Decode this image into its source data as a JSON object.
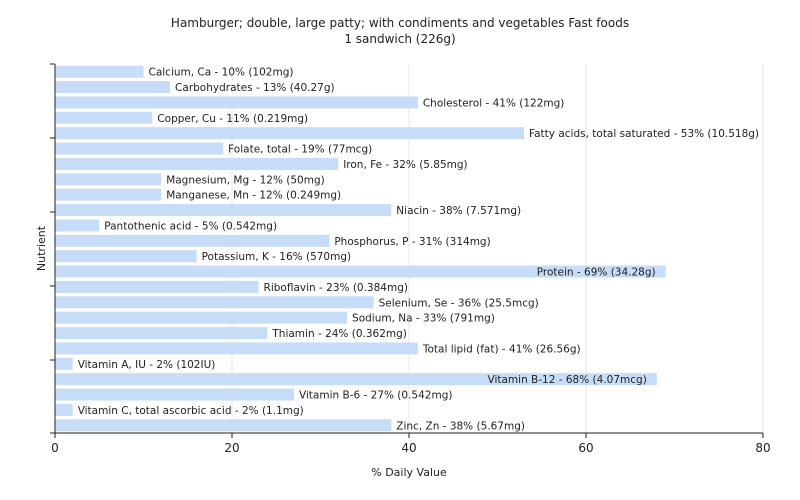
{
  "chart_data": {
    "type": "bar",
    "orientation": "horizontal",
    "title": "Hamburger; double, large patty; with condiments and vegetables Fast foods",
    "subtitle": "1 sandwich (226g)",
    "xlabel": "% Daily Value",
    "ylabel": "Nutrient",
    "xlim": [
      0,
      80
    ],
    "xticks": [
      0,
      20,
      40,
      60,
      80
    ],
    "grid": "vertical",
    "bar_color": "#c6dcf7",
    "categories": [
      "Calcium, Ca",
      "Carbohydrates",
      "Cholesterol",
      "Copper, Cu",
      "Fatty acids, total saturated",
      "Folate, total",
      "Iron, Fe",
      "Magnesium, Mg",
      "Manganese, Mn",
      "Niacin",
      "Pantothenic acid",
      "Phosphorus, P",
      "Potassium, K",
      "Protein",
      "Riboflavin",
      "Selenium, Se",
      "Sodium, Na",
      "Thiamin",
      "Total lipid (fat)",
      "Vitamin A, IU",
      "Vitamin B-12",
      "Vitamin B-6",
      "Vitamin C, total ascorbic acid",
      "Zinc, Zn"
    ],
    "values": [
      10,
      13,
      41,
      11,
      53,
      19,
      32,
      12,
      12,
      38,
      5,
      31,
      16,
      69,
      23,
      36,
      33,
      24,
      41,
      2,
      68,
      27,
      2,
      38
    ],
    "labels": [
      "Calcium, Ca - 10% (102mg)",
      "Carbohydrates - 13% (40.27g)",
      "Cholesterol - 41% (122mg)",
      "Copper, Cu - 11% (0.219mg)",
      "Fatty acids, total saturated - 53% (10.518g)",
      "Folate, total - 19% (77mcg)",
      "Iron, Fe - 32% (5.85mg)",
      "Magnesium, Mg - 12% (50mg)",
      "Manganese, Mn - 12% (0.249mg)",
      "Niacin - 38% (7.571mg)",
      "Pantothenic acid - 5% (0.542mg)",
      "Phosphorus, P - 31% (314mg)",
      "Potassium, K - 16% (570mg)",
      "Protein - 69% (34.28g)",
      "Riboflavin - 23% (0.384mg)",
      "Selenium, Se - 36% (25.5mcg)",
      "Sodium, Na - 33% (791mg)",
      "Thiamin - 24% (0.362mg)",
      "Total lipid (fat) - 41% (26.56g)",
      "Vitamin A, IU - 2% (102IU)",
      "Vitamin B-12 - 68% (4.07mcg)",
      "Vitamin B-6 - 27% (0.542mg)",
      "Vitamin C, total ascorbic acid - 2% (1.1mg)",
      "Zinc, Zn - 38% (5.67mg)"
    ]
  }
}
